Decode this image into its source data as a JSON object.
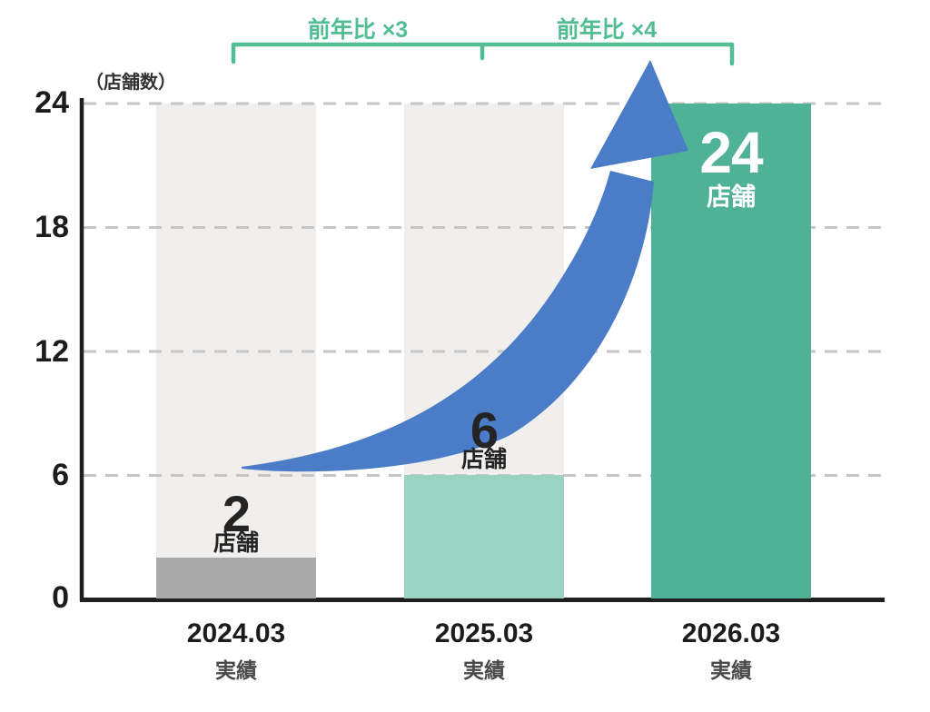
{
  "chart_data": {
    "type": "bar",
    "unit_label": "（店舗数）",
    "categories": [
      "2024.03",
      "2025.03",
      "2026.03"
    ],
    "category_sub_labels": [
      "実績",
      "実績",
      "実績"
    ],
    "values": [
      2,
      6,
      24
    ],
    "bar_value_unit": "店舗",
    "ylim": [
      0,
      24
    ],
    "yticks": [
      0,
      6,
      12,
      18,
      24
    ],
    "grid": "dashed horizontal gridlines at each y tick",
    "legend": "none",
    "annotations": [
      {
        "label": "前年比 ×3",
        "span": [
          "2024.03",
          "2025.03"
        ]
      },
      {
        "label": "前年比 ×4",
        "span": [
          "2025.03",
          "2026.03"
        ]
      }
    ],
    "colors": {
      "bar_2024": "#a9a9a9",
      "bar_2025": "#9bd3c3",
      "bar_2026": "#4fb196",
      "background_bar": "#f0efed",
      "arrow_blue": "#4a7cc7",
      "annotation_green": "#52bd94",
      "axis": "#1f1f1f",
      "gridline": "#c6c6c6",
      "value_label_dark": "#242424",
      "value_label_light": "#ffffff"
    }
  }
}
